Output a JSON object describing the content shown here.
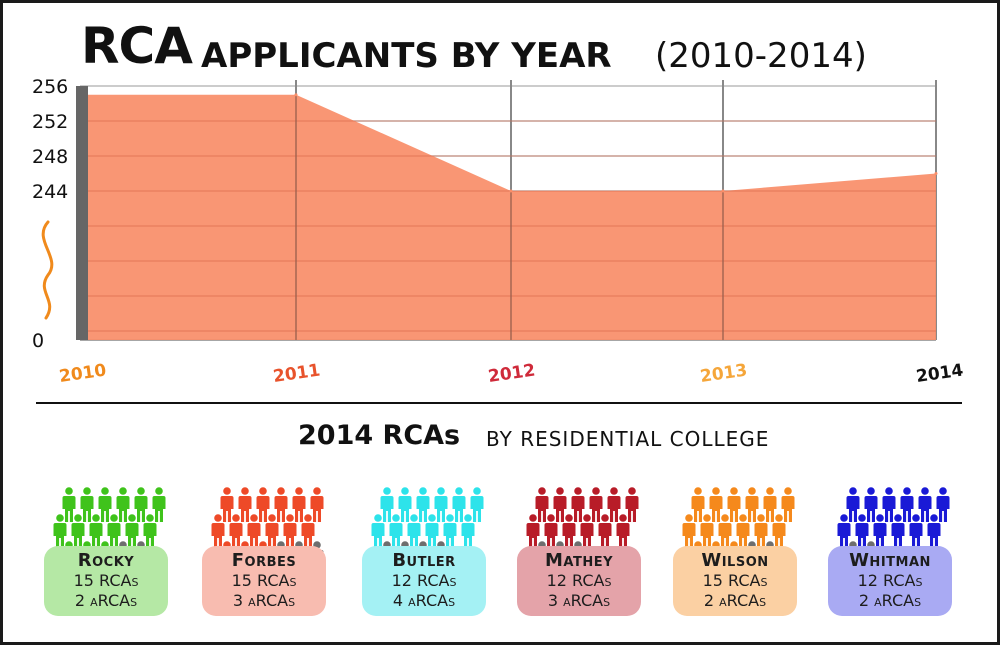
{
  "title": {
    "main": "RCA",
    "sub": "APPLICANTS BY YEAR",
    "range": "(2010-2014)"
  },
  "chart_data": {
    "type": "area",
    "title": "RCA APPLICANTS BY YEAR (2010-2014)",
    "x": [
      "2010",
      "2011",
      "2012",
      "2013",
      "2014"
    ],
    "values": [
      255,
      255,
      244,
      244,
      246
    ],
    "y_ticks": [
      "256",
      "252",
      "248",
      "244",
      "0"
    ],
    "ylim": [
      0,
      256
    ],
    "axis_break": true,
    "grid": true,
    "fill_color": "#f98e69",
    "x_label_colors": [
      "#f08a1c",
      "#e8532c",
      "#cf2a3a",
      "#f5a63a",
      "#111111"
    ]
  },
  "section": {
    "title": "2014 RCAs",
    "subtitle": "BY RESIDENTIAL COLLEGE"
  },
  "colleges": [
    {
      "name": "Rocky",
      "rcas": "15 RCAs",
      "arcas": "2 aRCAs",
      "rca_count": 15,
      "arca_count": 2,
      "color": "#3fc31b",
      "card_color": "#b5e8a5"
    },
    {
      "name": "Forbes",
      "rcas": "15 RCAs",
      "arcas": "3 aRCAs",
      "rca_count": 15,
      "arca_count": 3,
      "color": "#ee4a28",
      "card_color": "#f8bcb0"
    },
    {
      "name": "Butler",
      "rcas": "12 RCAs",
      "arcas": "4 aRCAs",
      "rca_count": 12,
      "arca_count": 4,
      "color": "#2de3ea",
      "card_color": "#a4f1f4"
    },
    {
      "name": "Mathey",
      "rcas": "12 RCAs",
      "arcas": "3 aRCAs",
      "rca_count": 12,
      "arca_count": 3,
      "color": "#b81c28",
      "card_color": "#e4a3a9"
    },
    {
      "name": "Wilson",
      "rcas": "15 RCAs",
      "arcas": "2 aRCAs",
      "rca_count": 15,
      "arca_count": 2,
      "color": "#f5891c",
      "card_color": "#fbd0a3"
    },
    {
      "name": "Whitman",
      "rcas": "12 RCAs",
      "arcas": "2 aRCAs",
      "rca_count": 12,
      "arca_count": 2,
      "color": "#1a1ad6",
      "card_color": "#a9aaf3"
    }
  ],
  "arca_color": "#6e6e6e"
}
